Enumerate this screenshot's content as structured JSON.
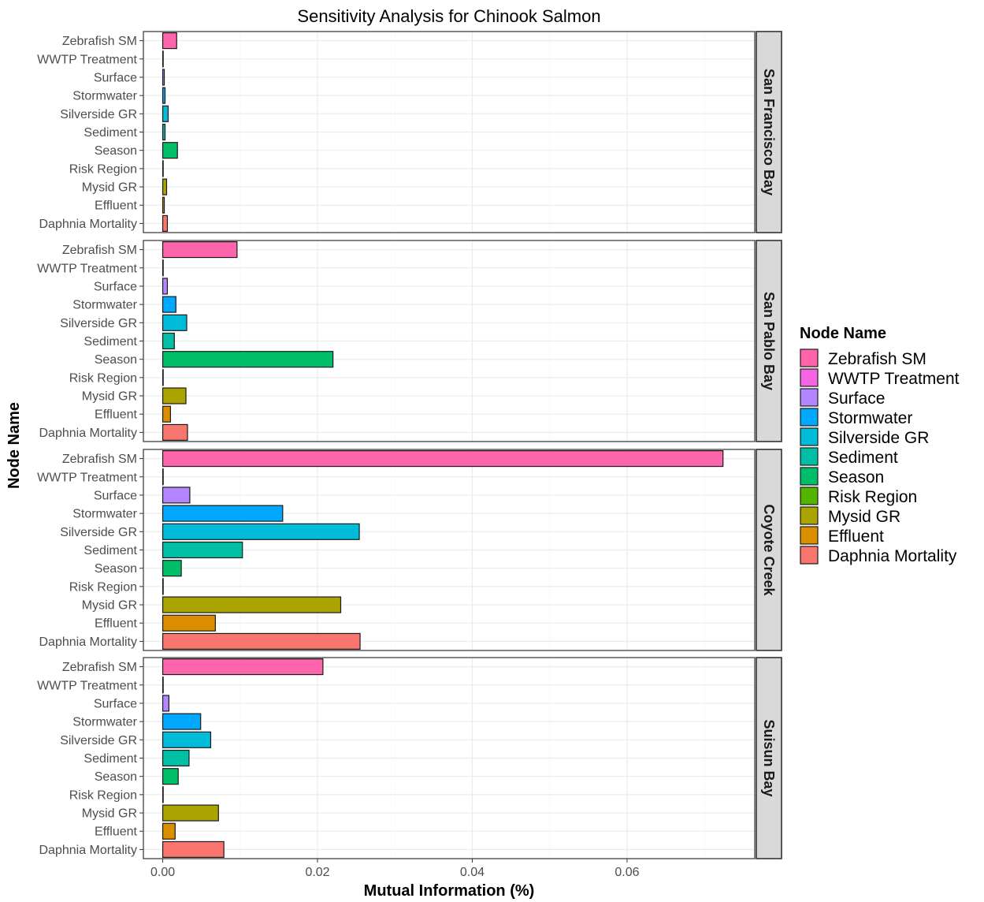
{
  "chart_data": {
    "type": "bar",
    "orientation": "horizontal",
    "title": "Sensitivity Analysis for Chinook Salmon",
    "xlabel": "Mutual Information (%)",
    "ylabel": "Node Name",
    "xlim": [
      -0.0025,
      0.0765
    ],
    "x_ticks": [
      0.0,
      0.02,
      0.04,
      0.06
    ],
    "x_tick_labels": [
      "0.00",
      "0.02",
      "0.04",
      "0.06"
    ],
    "grid": true,
    "legend_position": "right",
    "legend_title": "Node Name",
    "categories": [
      "Zebrafish SM",
      "WWTP Treatment",
      "Surface",
      "Stormwater",
      "Silverside GR",
      "Sediment",
      "Season",
      "Risk Region",
      "Mysid GR",
      "Effluent",
      "Daphnia Mortality"
    ],
    "colors": {
      "Zebrafish SM": "#FF65AC",
      "WWTP Treatment": "#F564E3",
      "Surface": "#B385FF",
      "Stormwater": "#00A9FF",
      "Silverside GR": "#00BCD8",
      "Sediment": "#00BFA4",
      "Season": "#00BE67",
      "Risk Region": "#53B400",
      "Mysid GR": "#ABA300",
      "Effluent": "#DB8E00",
      "Daphnia Mortality": "#F8766D"
    },
    "panels": [
      {
        "name": "San Francisco Bay",
        "values": [
          0.0018,
          0.0,
          0.0002,
          0.0003,
          0.0007,
          0.0003,
          0.0019,
          0.0,
          0.0005,
          0.0002,
          0.0006
        ]
      },
      {
        "name": "San Pablo Bay",
        "values": [
          0.0096,
          0.0,
          0.0006,
          0.0017,
          0.0031,
          0.0015,
          0.022,
          0.0,
          0.003,
          0.001,
          0.0032
        ]
      },
      {
        "name": "Coyote Creek",
        "values": [
          0.0724,
          0.0,
          0.0035,
          0.0155,
          0.0254,
          0.0103,
          0.0024,
          0.0,
          0.023,
          0.0068,
          0.0255
        ]
      },
      {
        "name": "Suisun Bay",
        "values": [
          0.0207,
          0.0,
          0.0008,
          0.0049,
          0.0062,
          0.0034,
          0.002,
          0.0,
          0.0072,
          0.0016,
          0.0079
        ]
      }
    ]
  }
}
